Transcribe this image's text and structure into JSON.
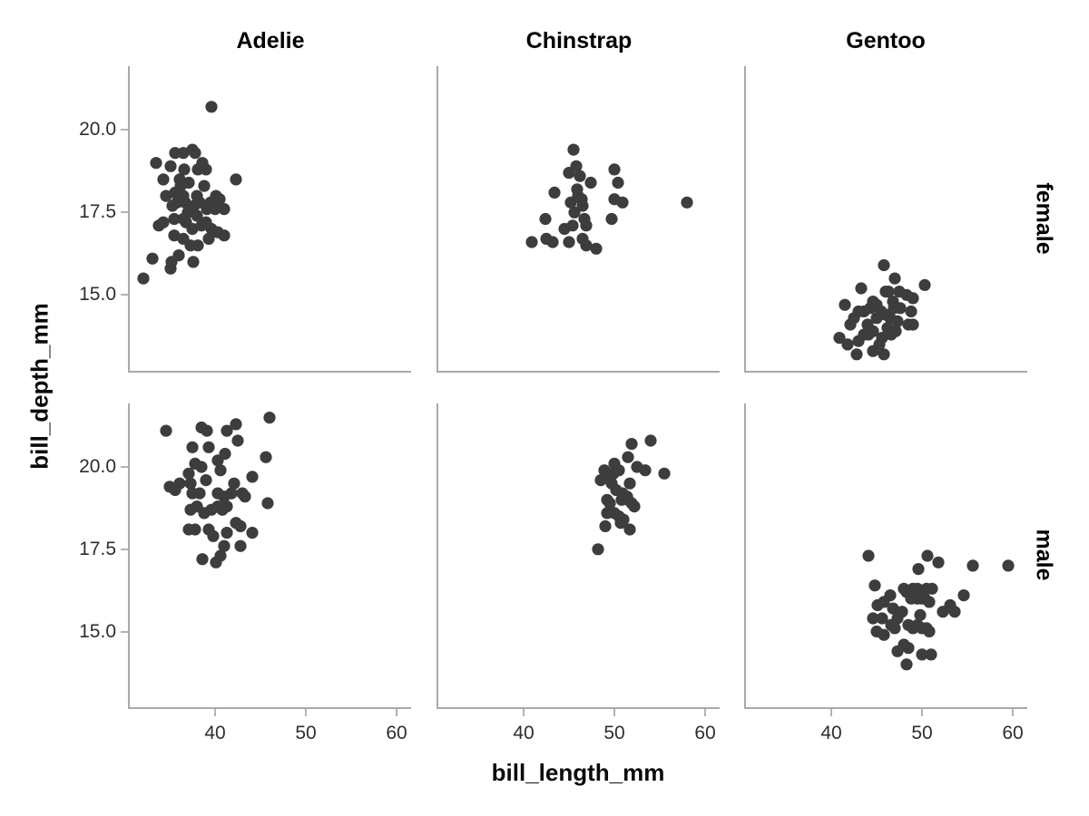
{
  "figure": {
    "x_axis_label": "bill_length_mm",
    "y_axis_label": "bill_depth_mm",
    "col_labels": [
      "Adelie",
      "Chinstrap",
      "Gentoo"
    ],
    "row_labels": [
      "female",
      "male"
    ]
  },
  "theme": {
    "background": "#ffffff",
    "axis_line_color": "#a9a9a9",
    "tick_mark_color": "#b3b3b3",
    "tick_label_color": "#2e2e2e",
    "title_color": "#000000",
    "point_color": "#3d3d3d"
  },
  "chart_data": {
    "type": "scatter",
    "title": "",
    "xlabel": "bill_length_mm",
    "ylabel": "bill_depth_mm",
    "facet": {
      "columns": "species",
      "rows": "sex",
      "column_values": [
        "Adelie",
        "Chinstrap",
        "Gentoo"
      ],
      "row_values": [
        "female",
        "male"
      ]
    },
    "x_domain": [
      30.6,
      61.6
    ],
    "y_domain": [
      12.7,
      21.93
    ],
    "x_ticks": [
      40,
      50,
      60
    ],
    "x_tick_labels": [
      "40",
      "50",
      "60"
    ],
    "y_ticks": [
      20.0,
      17.5,
      15.0
    ],
    "y_tick_labels": [
      "20.0",
      "17.5",
      "15.0"
    ],
    "grid": false,
    "legend": false,
    "point_radius": 6.6,
    "panels": [
      {
        "row": "female",
        "col": "Adelie",
        "points": [
          [
            32.1,
            15.5
          ],
          [
            33.1,
            16.1
          ],
          [
            33.5,
            19.0
          ],
          [
            33.8,
            17.1
          ],
          [
            34.3,
            18.5
          ],
          [
            34.3,
            17.2
          ],
          [
            34.6,
            18.0
          ],
          [
            35.1,
            18.9
          ],
          [
            35.1,
            15.8
          ],
          [
            35.2,
            16.0
          ],
          [
            35.3,
            17.7
          ],
          [
            35.5,
            17.3
          ],
          [
            35.5,
            16.8
          ],
          [
            35.6,
            19.3
          ],
          [
            35.6,
            18.1
          ],
          [
            35.8,
            17.8
          ],
          [
            36.0,
            16.2
          ],
          [
            36.1,
            18.5
          ],
          [
            36.2,
            18.3
          ],
          [
            36.5,
            19.3
          ],
          [
            36.5,
            18.0
          ],
          [
            36.5,
            17.3
          ],
          [
            36.5,
            16.7
          ],
          [
            36.6,
            18.8
          ],
          [
            36.7,
            17.8
          ],
          [
            36.8,
            17.2
          ],
          [
            37.0,
            17.5
          ],
          [
            37.1,
            18.4
          ],
          [
            37.3,
            16.5
          ],
          [
            37.5,
            19.4
          ],
          [
            37.5,
            17.0
          ],
          [
            37.6,
            16.0
          ],
          [
            37.7,
            17.7
          ],
          [
            37.8,
            19.3
          ],
          [
            38.0,
            18.0
          ],
          [
            38.0,
            17.4
          ],
          [
            38.1,
            18.8
          ],
          [
            38.1,
            16.5
          ],
          [
            38.3,
            17.8
          ],
          [
            38.5,
            17.1
          ],
          [
            38.6,
            19.0
          ],
          [
            38.8,
            18.3
          ],
          [
            39.0,
            18.8
          ],
          [
            39.0,
            17.2
          ],
          [
            39.1,
            17.6
          ],
          [
            39.3,
            16.7
          ],
          [
            39.5,
            17.8
          ],
          [
            39.6,
            20.7
          ],
          [
            39.6,
            17.0
          ],
          [
            40.0,
            17.6
          ],
          [
            40.1,
            18.0
          ],
          [
            40.3,
            16.9
          ],
          [
            40.5,
            17.9
          ],
          [
            41.0,
            17.6
          ],
          [
            41.0,
            16.8
          ],
          [
            42.3,
            18.5
          ]
        ]
      },
      {
        "row": "female",
        "col": "Chinstrap",
        "points": [
          [
            40.9,
            16.6
          ],
          [
            42.4,
            17.3
          ],
          [
            42.5,
            16.7
          ],
          [
            43.2,
            16.6
          ],
          [
            43.4,
            18.1
          ],
          [
            44.5,
            17.0
          ],
          [
            45.0,
            18.7
          ],
          [
            45.0,
            16.6
          ],
          [
            45.2,
            17.8
          ],
          [
            45.4,
            17.1
          ],
          [
            45.5,
            19.4
          ],
          [
            45.6,
            17.5
          ],
          [
            45.8,
            18.9
          ],
          [
            45.9,
            18.2
          ],
          [
            46.0,
            18.0
          ],
          [
            46.2,
            18.6
          ],
          [
            46.4,
            17.9
          ],
          [
            46.5,
            17.7
          ],
          [
            46.5,
            16.7
          ],
          [
            46.7,
            17.3
          ],
          [
            46.9,
            17.1
          ],
          [
            46.9,
            16.5
          ],
          [
            47.4,
            18.4
          ],
          [
            48.0,
            16.4
          ],
          [
            49.7,
            17.3
          ],
          [
            50.0,
            18.8
          ],
          [
            50.0,
            17.9
          ],
          [
            50.4,
            18.4
          ],
          [
            50.9,
            17.8
          ],
          [
            58.0,
            17.8
          ]
        ]
      },
      {
        "row": "female",
        "col": "Gentoo",
        "points": [
          [
            40.9,
            13.7
          ],
          [
            41.5,
            14.7
          ],
          [
            41.8,
            13.5
          ],
          [
            42.1,
            14.1
          ],
          [
            42.5,
            14.3
          ],
          [
            42.8,
            13.2
          ],
          [
            43.0,
            14.5
          ],
          [
            43.0,
            13.6
          ],
          [
            43.3,
            15.2
          ],
          [
            43.6,
            14.5
          ],
          [
            43.6,
            13.8
          ],
          [
            44.0,
            14.1
          ],
          [
            44.1,
            13.8
          ],
          [
            44.3,
            14.6
          ],
          [
            44.6,
            14.8
          ],
          [
            44.6,
            13.9
          ],
          [
            44.6,
            13.3
          ],
          [
            45.0,
            14.7
          ],
          [
            45.0,
            14.3
          ],
          [
            45.3,
            13.5
          ],
          [
            45.5,
            14.5
          ],
          [
            45.6,
            13.7
          ],
          [
            45.8,
            15.9
          ],
          [
            45.8,
            13.2
          ],
          [
            46.0,
            15.1
          ],
          [
            46.0,
            14.4
          ],
          [
            46.2,
            14.0
          ],
          [
            46.3,
            15.1
          ],
          [
            46.5,
            14.3
          ],
          [
            46.6,
            13.8
          ],
          [
            46.8,
            14.8
          ],
          [
            46.9,
            14.6
          ],
          [
            47.0,
            15.5
          ],
          [
            47.1,
            13.9
          ],
          [
            47.3,
            14.2
          ],
          [
            47.5,
            15.1
          ],
          [
            47.6,
            14.6
          ],
          [
            48.3,
            15.0
          ],
          [
            48.5,
            14.1
          ],
          [
            48.8,
            14.5
          ],
          [
            49.0,
            14.9
          ],
          [
            49.0,
            14.1
          ],
          [
            50.3,
            15.3
          ]
        ]
      },
      {
        "row": "male",
        "col": "Adelie",
        "points": [
          [
            34.6,
            21.1
          ],
          [
            35.0,
            19.4
          ],
          [
            35.6,
            19.3
          ],
          [
            36.1,
            19.5
          ],
          [
            37.1,
            19.8
          ],
          [
            37.1,
            18.1
          ],
          [
            37.3,
            19.5
          ],
          [
            37.3,
            18.7
          ],
          [
            37.5,
            20.6
          ],
          [
            37.5,
            19.2
          ],
          [
            37.8,
            20.1
          ],
          [
            37.8,
            18.1
          ],
          [
            38.0,
            18.8
          ],
          [
            38.3,
            19.2
          ],
          [
            38.5,
            21.2
          ],
          [
            38.5,
            20.0
          ],
          [
            38.6,
            17.2
          ],
          [
            38.8,
            18.6
          ],
          [
            39.0,
            19.6
          ],
          [
            39.1,
            21.1
          ],
          [
            39.3,
            20.6
          ],
          [
            39.3,
            18.1
          ],
          [
            39.6,
            18.7
          ],
          [
            39.8,
            17.9
          ],
          [
            40.1,
            17.1
          ],
          [
            40.3,
            20.2
          ],
          [
            40.3,
            19.2
          ],
          [
            40.3,
            18.8
          ],
          [
            40.6,
            19.9
          ],
          [
            40.6,
            17.3
          ],
          [
            40.8,
            18.7
          ],
          [
            41.0,
            19.1
          ],
          [
            41.0,
            17.6
          ],
          [
            41.1,
            20.4
          ],
          [
            41.3,
            21.1
          ],
          [
            41.3,
            18.8
          ],
          [
            41.3,
            18.0
          ],
          [
            41.8,
            19.2
          ],
          [
            42.1,
            19.5
          ],
          [
            42.3,
            21.3
          ],
          [
            42.3,
            18.3
          ],
          [
            42.5,
            20.8
          ],
          [
            42.8,
            18.2
          ],
          [
            42.8,
            17.6
          ],
          [
            43.0,
            19.2
          ],
          [
            43.3,
            19.1
          ],
          [
            44.1,
            19.7
          ],
          [
            44.1,
            18.0
          ],
          [
            45.6,
            20.3
          ],
          [
            45.8,
            18.9
          ],
          [
            46.0,
            21.5
          ]
        ]
      },
      {
        "row": "male",
        "col": "Chinstrap",
        "points": [
          [
            48.2,
            17.5
          ],
          [
            48.5,
            19.6
          ],
          [
            48.9,
            19.9
          ],
          [
            49.0,
            18.2
          ],
          [
            49.2,
            19.7
          ],
          [
            49.2,
            19.0
          ],
          [
            49.2,
            18.6
          ],
          [
            49.5,
            18.9
          ],
          [
            49.7,
            19.5
          ],
          [
            49.9,
            19.8
          ],
          [
            50.0,
            20.1
          ],
          [
            50.0,
            18.6
          ],
          [
            50.2,
            19.3
          ],
          [
            50.5,
            19.9
          ],
          [
            50.5,
            18.5
          ],
          [
            50.7,
            18.3
          ],
          [
            50.8,
            19.0
          ],
          [
            50.9,
            19.2
          ],
          [
            51.0,
            18.4
          ],
          [
            51.4,
            19.1
          ],
          [
            51.5,
            20.3
          ],
          [
            51.5,
            19.0
          ],
          [
            51.7,
            19.5
          ],
          [
            51.7,
            18.1
          ],
          [
            51.9,
            20.7
          ],
          [
            51.9,
            18.9
          ],
          [
            52.2,
            18.8
          ],
          [
            52.5,
            20.0
          ],
          [
            53.4,
            19.9
          ],
          [
            54.0,
            20.8
          ],
          [
            55.5,
            19.8
          ]
        ]
      },
      {
        "row": "male",
        "col": "Gentoo",
        "points": [
          [
            44.1,
            17.3
          ],
          [
            44.6,
            15.4
          ],
          [
            44.8,
            16.4
          ],
          [
            45.0,
            15.0
          ],
          [
            45.1,
            15.8
          ],
          [
            45.6,
            15.4
          ],
          [
            45.8,
            15.9
          ],
          [
            45.8,
            14.9
          ],
          [
            46.5,
            16.1
          ],
          [
            46.6,
            15.2
          ],
          [
            46.8,
            15.7
          ],
          [
            47.0,
            15.1
          ],
          [
            47.3,
            15.4
          ],
          [
            47.3,
            14.4
          ],
          [
            47.8,
            15.6
          ],
          [
            48.0,
            16.3
          ],
          [
            48.0,
            14.6
          ],
          [
            48.3,
            16.2
          ],
          [
            48.3,
            14.0
          ],
          [
            48.5,
            15.2
          ],
          [
            48.5,
            14.5
          ],
          [
            48.8,
            16.0
          ],
          [
            49.0,
            16.3
          ],
          [
            49.0,
            15.1
          ],
          [
            49.5,
            16.3
          ],
          [
            49.5,
            16.0
          ],
          [
            49.5,
            15.2
          ],
          [
            49.6,
            16.9
          ],
          [
            49.8,
            15.5
          ],
          [
            50.0,
            16.0
          ],
          [
            50.0,
            15.1
          ],
          [
            50.0,
            14.3
          ],
          [
            50.3,
            16.0
          ],
          [
            50.5,
            16.3
          ],
          [
            50.5,
            15.1
          ],
          [
            50.6,
            17.3
          ],
          [
            50.8,
            15.9
          ],
          [
            50.8,
            15.0
          ],
          [
            51.0,
            14.3
          ],
          [
            51.1,
            16.3
          ],
          [
            51.8,
            17.1
          ],
          [
            52.3,
            15.6
          ],
          [
            53.1,
            15.8
          ],
          [
            53.6,
            15.6
          ],
          [
            54.6,
            16.1
          ],
          [
            55.6,
            17.0
          ],
          [
            59.5,
            17.0
          ]
        ]
      }
    ]
  }
}
